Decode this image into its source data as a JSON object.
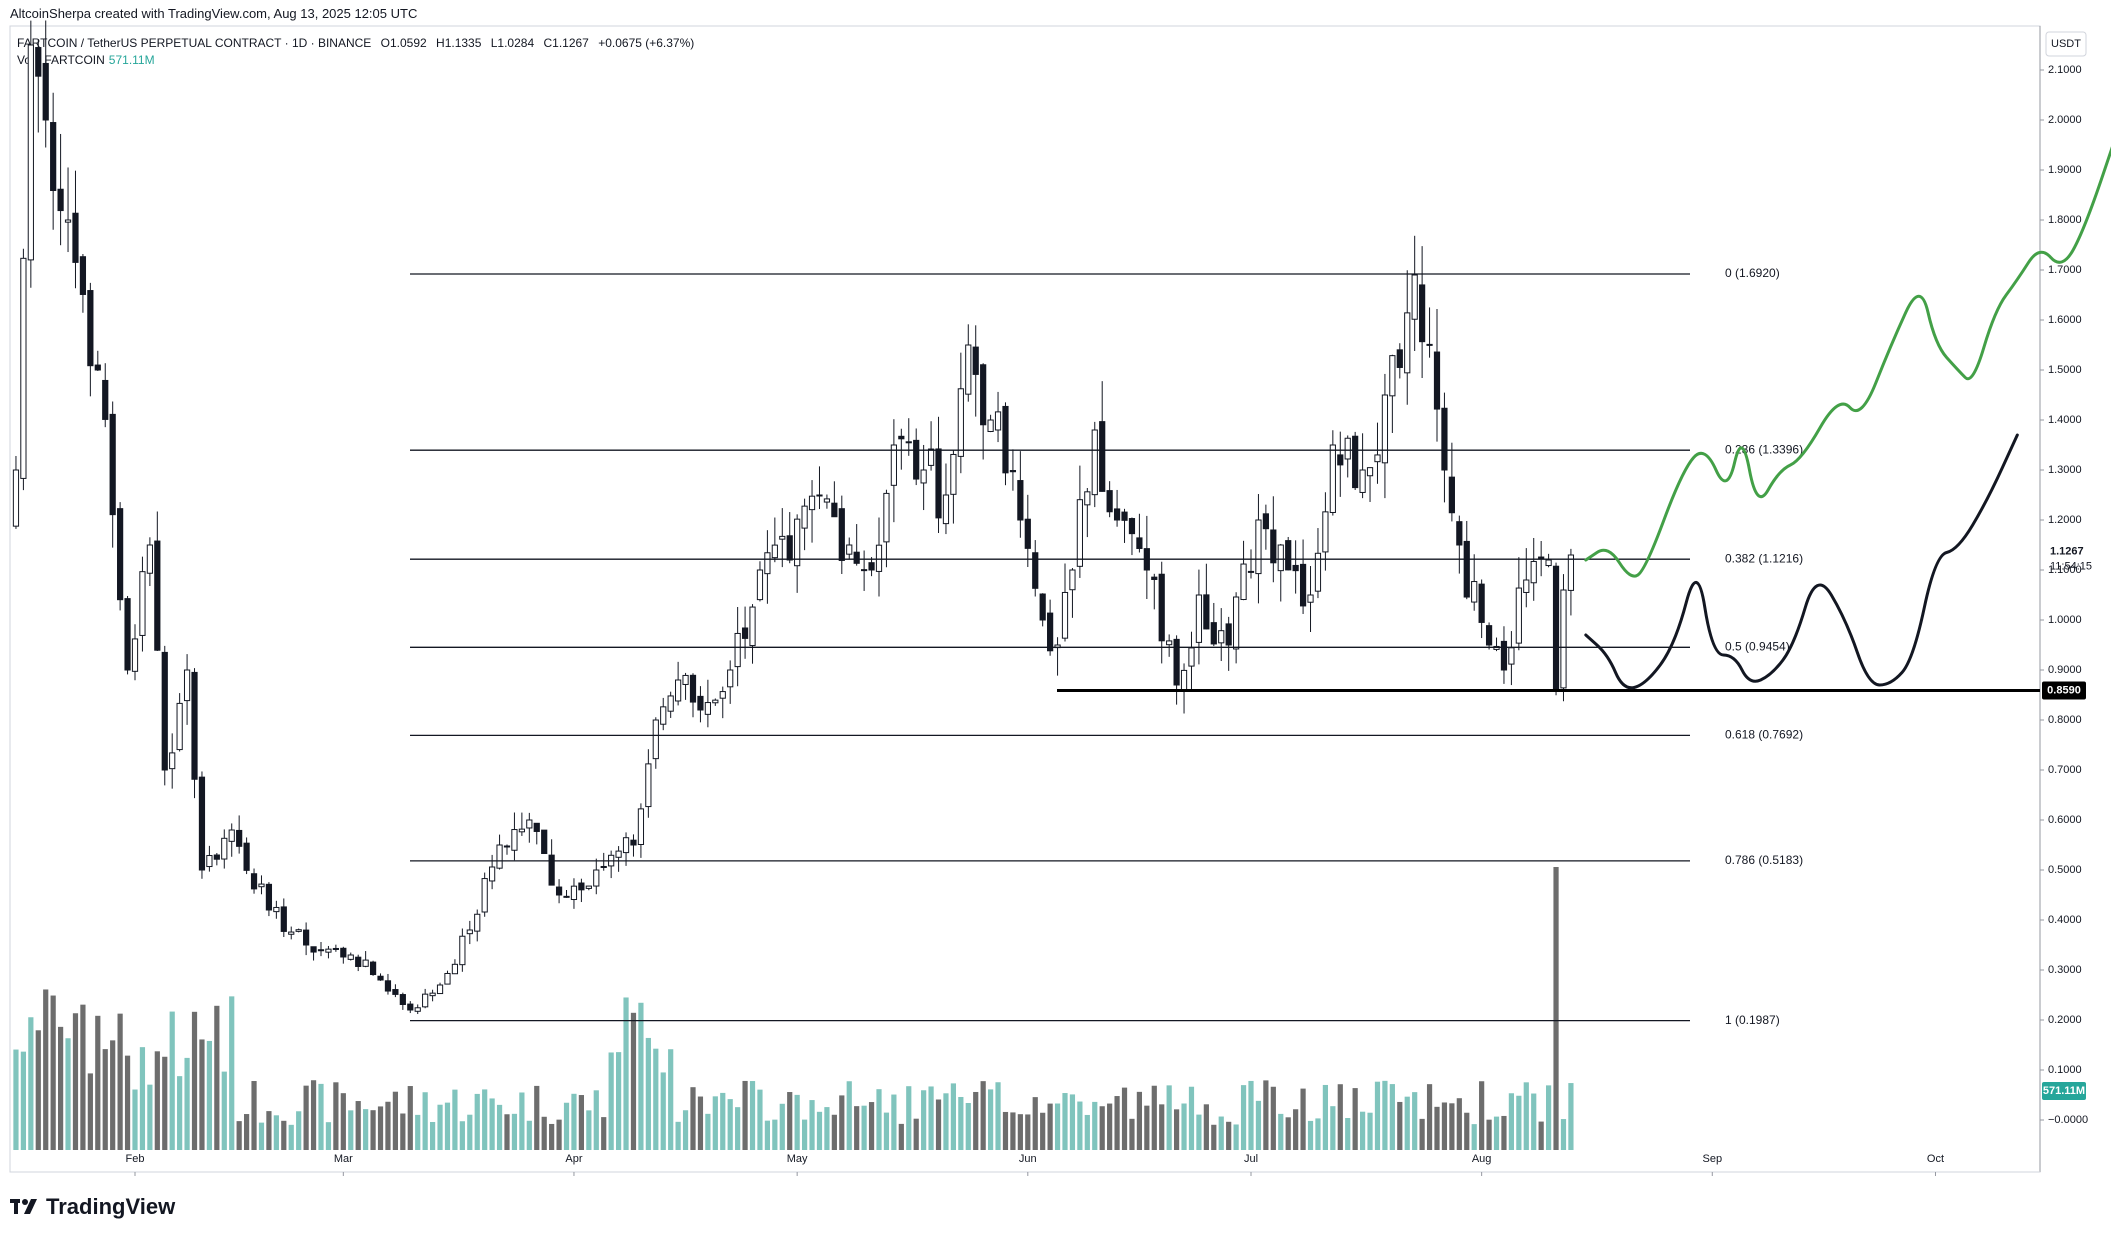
{
  "header": {
    "created_by": "AltcoinSherpa created with TradingView.com, Aug 13, 2025 12:05 UTC",
    "symbol": "FARTCOIN / TetherUS PERPETUAL CONTRACT · 1D · BINANCE",
    "open": "O1.0592",
    "high": "H1.1335",
    "low": "L1.0284",
    "close": "C1.1267",
    "change": "+0.0675 (+6.37%)",
    "volume_label": "Vol · FARTCOIN",
    "volume_value": "571.11M"
  },
  "brand": {
    "name": "TradingView",
    "icon": "tradingview-logo-icon"
  },
  "chart_data": {
    "type": "candlestick",
    "currency": "USDT",
    "y_axis_ticks": [
      "2.1000",
      "2.0000",
      "1.9000",
      "1.8000",
      "1.7000",
      "1.6000",
      "1.5000",
      "1.4000",
      "1.3000",
      "1.2000",
      "1.1000",
      "1.0000",
      "0.9000",
      "0.8000",
      "0.7000",
      "0.6000",
      "0.5000",
      "0.4000",
      "0.3000",
      "0.2000",
      "0.1000",
      "0.0000"
    ],
    "x_axis_ticks": [
      "Feb",
      "Mar",
      "Apr",
      "May",
      "Jun",
      "Jul",
      "Aug",
      "Sep",
      "Oct"
    ],
    "ylim": [
      -0.05,
      2.2
    ],
    "price_label": {
      "value": "1.1267",
      "countdown": "11:54:15"
    },
    "support_label": "0.8590",
    "volume_label": "571.11M",
    "grid": false,
    "fib_levels": [
      {
        "ratio": "0",
        "price": 1.692,
        "label": "0 (1.6920)"
      },
      {
        "ratio": "0.236",
        "price": 1.3396,
        "label": "0.236 (1.3396)"
      },
      {
        "ratio": "0.382",
        "price": 1.1216,
        "label": "0.382 (1.1216)"
      },
      {
        "ratio": "0.5",
        "price": 0.9454,
        "label": "0.5 (0.9454)"
      },
      {
        "ratio": "0.618",
        "price": 0.7692,
        "label": "0.618 (0.7692)"
      },
      {
        "ratio": "0.786",
        "price": 0.5183,
        "label": "0.786 (0.5183)"
      },
      {
        "ratio": "1",
        "price": 0.1987,
        "label": "1 (0.1987)"
      }
    ],
    "support_level": 0.859,
    "anchor_closes": [
      [
        "2025-01-16",
        1.3
      ],
      [
        "2025-01-18",
        2.15
      ],
      [
        "2025-01-20",
        2.0
      ],
      [
        "2025-01-23",
        1.8
      ],
      [
        "2025-01-27",
        1.5
      ],
      [
        "2025-01-31",
        0.9
      ],
      [
        "2025-02-03",
        1.15
      ],
      [
        "2025-02-05",
        0.7
      ],
      [
        "2025-02-08",
        0.9
      ],
      [
        "2025-02-10",
        0.5
      ],
      [
        "2025-02-14",
        0.58
      ],
      [
        "2025-02-19",
        0.42
      ],
      [
        "2025-02-24",
        0.35
      ],
      [
        "2025-03-02",
        0.33
      ],
      [
        "2025-03-06",
        0.28
      ],
      [
        "2025-03-10",
        0.22
      ],
      [
        "2025-03-14",
        0.27
      ],
      [
        "2025-03-18",
        0.38
      ],
      [
        "2025-03-22",
        0.55
      ],
      [
        "2025-03-26",
        0.6
      ],
      [
        "2025-03-30",
        0.45
      ],
      [
        "2025-04-04",
        0.5
      ],
      [
        "2025-04-09",
        0.55
      ],
      [
        "2025-04-12",
        0.8
      ],
      [
        "2025-04-15",
        0.88
      ],
      [
        "2025-04-18",
        0.82
      ],
      [
        "2025-04-22",
        0.9
      ],
      [
        "2025-04-26",
        1.1
      ],
      [
        "2025-04-30",
        1.12
      ],
      [
        "2025-05-04",
        1.25
      ],
      [
        "2025-05-08",
        1.15
      ],
      [
        "2025-05-11",
        1.1
      ],
      [
        "2025-05-14",
        1.35
      ],
      [
        "2025-05-18",
        1.3
      ],
      [
        "2025-05-21",
        1.25
      ],
      [
        "2025-05-24",
        1.55
      ],
      [
        "2025-05-27",
        1.4
      ],
      [
        "2025-05-31",
        1.2
      ],
      [
        "2025-06-03",
        1.0
      ],
      [
        "2025-06-05",
        0.95
      ],
      [
        "2025-06-07",
        1.1
      ],
      [
        "2025-06-10",
        1.38
      ],
      [
        "2025-06-13",
        1.2
      ],
      [
        "2025-06-17",
        1.1
      ],
      [
        "2025-06-21",
        0.87
      ],
      [
        "2025-06-24",
        1.05
      ],
      [
        "2025-06-28",
        0.95
      ],
      [
        "2025-07-02",
        1.2
      ],
      [
        "2025-07-05",
        1.15
      ],
      [
        "2025-07-09",
        1.05
      ],
      [
        "2025-07-12",
        1.35
      ],
      [
        "2025-07-16",
        1.3
      ],
      [
        "2025-07-19",
        1.45
      ],
      [
        "2025-07-23",
        1.69
      ],
      [
        "2025-07-25",
        1.55
      ],
      [
        "2025-07-27",
        1.3
      ],
      [
        "2025-07-29",
        1.15
      ],
      [
        "2025-08-02",
        0.95
      ],
      [
        "2025-08-04",
        0.9
      ],
      [
        "2025-08-07",
        1.08
      ],
      [
        "2025-08-10",
        1.12
      ],
      [
        "2025-08-11",
        0.86
      ],
      [
        "2025-08-12",
        1.06
      ],
      [
        "2025-08-13",
        1.13
      ]
    ],
    "volume_spike": {
      "date": "2025-08-11",
      "value": "largest bar"
    },
    "projections": [
      {
        "name": "green",
        "color": "#43a047",
        "points": [
          [
            "2025-08-15",
            1.12
          ],
          [
            "2025-08-18",
            1.15
          ],
          [
            "2025-08-21",
            1.08
          ],
          [
            "2025-08-23",
            1.1
          ],
          [
            "2025-08-28",
            1.3
          ],
          [
            "2025-08-31",
            1.35
          ],
          [
            "2025-09-03",
            1.25
          ],
          [
            "2025-09-05",
            1.38
          ],
          [
            "2025-09-07",
            1.22
          ],
          [
            "2025-09-10",
            1.3
          ],
          [
            "2025-09-13",
            1.32
          ],
          [
            "2025-09-18",
            1.45
          ],
          [
            "2025-09-21",
            1.4
          ],
          [
            "2025-09-25",
            1.55
          ],
          [
            "2025-09-29",
            1.68
          ],
          [
            "2025-10-01",
            1.55
          ],
          [
            "2025-10-04",
            1.5
          ],
          [
            "2025-10-06",
            1.47
          ],
          [
            "2025-10-09",
            1.62
          ],
          [
            "2025-10-12",
            1.68
          ],
          [
            "2025-10-15",
            1.75
          ],
          [
            "2025-10-18",
            1.7
          ],
          [
            "2025-10-21",
            1.78
          ],
          [
            "2025-10-26",
            2.0
          ]
        ]
      },
      {
        "name": "black",
        "color": "#131722",
        "points": [
          [
            "2025-08-15",
            0.97
          ],
          [
            "2025-08-18",
            0.93
          ],
          [
            "2025-08-20",
            0.86
          ],
          [
            "2025-08-23",
            0.87
          ],
          [
            "2025-08-27",
            0.95
          ],
          [
            "2025-08-30",
            1.12
          ],
          [
            "2025-09-01",
            0.93
          ],
          [
            "2025-09-04",
            0.93
          ],
          [
            "2025-09-06",
            0.87
          ],
          [
            "2025-09-09",
            0.89
          ],
          [
            "2025-09-12",
            0.95
          ],
          [
            "2025-09-15",
            1.1
          ],
          [
            "2025-09-19",
            1.0
          ],
          [
            "2025-09-22",
            0.87
          ],
          [
            "2025-09-25",
            0.87
          ],
          [
            "2025-09-28",
            0.92
          ],
          [
            "2025-10-01",
            1.13
          ],
          [
            "2025-10-04",
            1.14
          ],
          [
            "2025-10-08",
            1.24
          ],
          [
            "2025-10-12",
            1.37
          ]
        ]
      }
    ]
  }
}
